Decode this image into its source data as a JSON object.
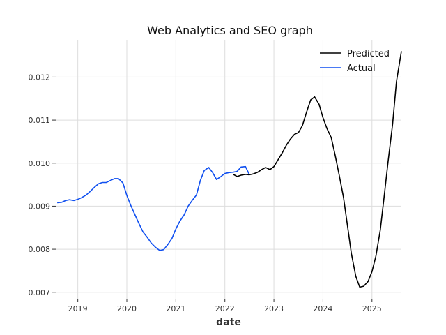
{
  "chart_data": {
    "type": "line",
    "title": "Web Analytics and SEO graph",
    "xlabel": "date",
    "ylabel": "",
    "xlim": [
      2018.55,
      2025.6
    ],
    "ylim": [
      0.00685,
      0.01285
    ],
    "x_ticks": [
      2019,
      2020,
      2021,
      2022,
      2023,
      2024,
      2025
    ],
    "x_tick_labels": [
      "2019",
      "2020",
      "2021",
      "2022",
      "2023",
      "2024",
      "2025"
    ],
    "y_ticks": [
      0.007,
      0.008,
      0.009,
      0.01,
      0.011,
      0.012
    ],
    "y_tick_labels": [
      "0.007",
      "0.008",
      "0.009",
      "0.010",
      "0.011",
      "0.012"
    ],
    "grid": true,
    "legend_position": "top-right",
    "series": [
      {
        "name": "Predicted",
        "color": "#000000",
        "points": [
          [
            2022.17,
            0.00974
          ],
          [
            2022.25,
            0.00969
          ],
          [
            2022.33,
            0.00972
          ],
          [
            2022.42,
            0.00974
          ],
          [
            2022.5,
            0.00973
          ],
          [
            2022.58,
            0.00975
          ],
          [
            2022.67,
            0.00979
          ],
          [
            2022.75,
            0.00985
          ],
          [
            2022.83,
            0.0099
          ],
          [
            2022.92,
            0.00985
          ],
          [
            2023.0,
            0.00992
          ],
          [
            2023.08,
            0.01007
          ],
          [
            2023.17,
            0.01024
          ],
          [
            2023.25,
            0.01041
          ],
          [
            2023.33,
            0.01055
          ],
          [
            2023.42,
            0.01067
          ],
          [
            2023.5,
            0.01071
          ],
          [
            2023.58,
            0.01087
          ],
          [
            2023.67,
            0.0112
          ],
          [
            2023.75,
            0.01147
          ],
          [
            2023.83,
            0.01154
          ],
          [
            2023.92,
            0.01137
          ],
          [
            2024.0,
            0.01106
          ],
          [
            2024.08,
            0.01081
          ],
          [
            2024.17,
            0.01059
          ],
          [
            2024.25,
            0.01018
          ],
          [
            2024.33,
            0.00973
          ],
          [
            2024.42,
            0.0092
          ],
          [
            2024.5,
            0.00855
          ],
          [
            2024.58,
            0.0079
          ],
          [
            2024.67,
            0.00737
          ],
          [
            2024.75,
            0.00712
          ],
          [
            2024.83,
            0.00714
          ],
          [
            2024.92,
            0.00725
          ],
          [
            2025.0,
            0.00748
          ],
          [
            2025.08,
            0.00784
          ],
          [
            2025.17,
            0.00845
          ],
          [
            2025.25,
            0.00924
          ],
          [
            2025.33,
            0.01005
          ],
          [
            2025.42,
            0.0109
          ],
          [
            2025.5,
            0.0119
          ],
          [
            2025.6,
            0.0126
          ]
        ]
      },
      {
        "name": "Actual",
        "color": "#0f4ff0",
        "points": [
          [
            2018.58,
            0.00908
          ],
          [
            2018.67,
            0.00909
          ],
          [
            2018.75,
            0.00913
          ],
          [
            2018.83,
            0.00915
          ],
          [
            2018.92,
            0.00913
          ],
          [
            2019.0,
            0.00916
          ],
          [
            2019.08,
            0.0092
          ],
          [
            2019.17,
            0.00926
          ],
          [
            2019.25,
            0.00934
          ],
          [
            2019.33,
            0.00943
          ],
          [
            2019.42,
            0.00952
          ],
          [
            2019.5,
            0.00955
          ],
          [
            2019.58,
            0.00955
          ],
          [
            2019.67,
            0.0096
          ],
          [
            2019.75,
            0.00964
          ],
          [
            2019.83,
            0.00964
          ],
          [
            2019.92,
            0.00954
          ],
          [
            2020.0,
            0.00925
          ],
          [
            2020.08,
            0.00902
          ],
          [
            2020.17,
            0.00879
          ],
          [
            2020.25,
            0.00859
          ],
          [
            2020.33,
            0.0084
          ],
          [
            2020.42,
            0.00827
          ],
          [
            2020.5,
            0.00814
          ],
          [
            2020.58,
            0.00805
          ],
          [
            2020.67,
            0.00797
          ],
          [
            2020.75,
            0.00799
          ],
          [
            2020.83,
            0.0081
          ],
          [
            2020.92,
            0.00825
          ],
          [
            2021.0,
            0.00847
          ],
          [
            2021.08,
            0.00865
          ],
          [
            2021.17,
            0.0088
          ],
          [
            2021.25,
            0.009
          ],
          [
            2021.33,
            0.00913
          ],
          [
            2021.42,
            0.00926
          ],
          [
            2021.5,
            0.0096
          ],
          [
            2021.58,
            0.00983
          ],
          [
            2021.67,
            0.0099
          ],
          [
            2021.75,
            0.00978
          ],
          [
            2021.83,
            0.00962
          ],
          [
            2021.92,
            0.00969
          ],
          [
            2022.0,
            0.00976
          ],
          [
            2022.08,
            0.00978
          ],
          [
            2022.17,
            0.00979
          ],
          [
            2022.25,
            0.00981
          ],
          [
            2022.33,
            0.00991
          ],
          [
            2022.42,
            0.00992
          ],
          [
            2022.5,
            0.00973
          ]
        ]
      }
    ]
  }
}
